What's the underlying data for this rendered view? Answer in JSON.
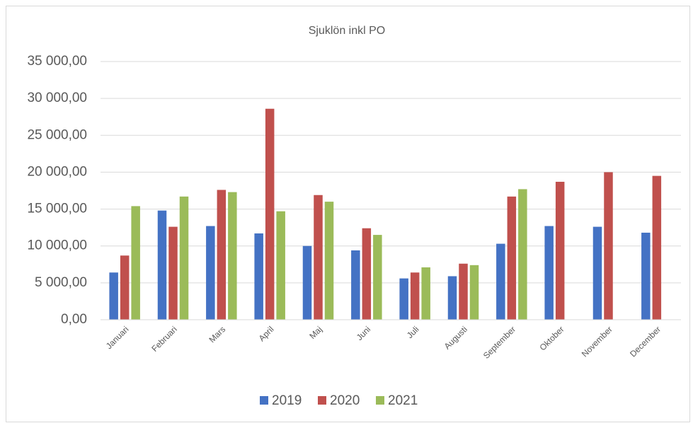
{
  "chart_data": {
    "type": "bar",
    "title": "Sjuklön inkl PO",
    "categories": [
      "Januari",
      "Februari",
      "Mars",
      "April",
      "Maj",
      "Juni",
      "Juli",
      "Augusti",
      "September",
      "Oktober",
      "November",
      "December"
    ],
    "series": [
      {
        "name": "2019",
        "color": "#4472c4",
        "values": [
          6400,
          14800,
          12700,
          11700,
          10000,
          9400,
          5600,
          5900,
          10300,
          12700,
          12600,
          11800
        ]
      },
      {
        "name": "2020",
        "color": "#c0504d",
        "values": [
          8700,
          12600,
          17600,
          28600,
          16900,
          12400,
          6400,
          7600,
          16700,
          18700,
          20000,
          19500
        ]
      },
      {
        "name": "2021",
        "color": "#9bbb59",
        "values": [
          15400,
          16700,
          17300,
          14700,
          16000,
          11500,
          7100,
          7400,
          17700,
          null,
          null,
          null
        ]
      }
    ],
    "ylim": [
      0,
      35000
    ],
    "yticks": [
      {
        "value": 0,
        "label": "0,00"
      },
      {
        "value": 5000,
        "label": "5 000,00"
      },
      {
        "value": 10000,
        "label": "10 000,00"
      },
      {
        "value": 15000,
        "label": "15 000,00"
      },
      {
        "value": 20000,
        "label": "20 000,00"
      },
      {
        "value": 25000,
        "label": "25 000,00"
      },
      {
        "value": 30000,
        "label": "30 000,00"
      },
      {
        "value": 35000,
        "label": "35 000,00"
      }
    ],
    "grid": true,
    "legend": "bottom"
  }
}
